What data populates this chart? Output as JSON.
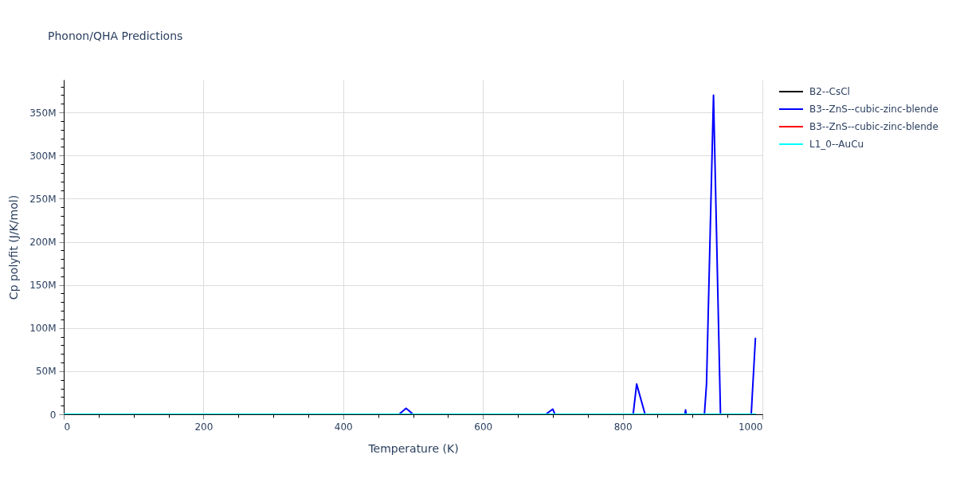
{
  "chart_data": {
    "type": "line",
    "title": "Phonon/QHA Predictions",
    "xlabel": "Temperature (K)",
    "ylabel": "Cp polyfit (J/K/mol)",
    "x": [
      0,
      990
    ],
    "series": [
      {
        "name": "B2--CsCl",
        "color": "#000000",
        "values": [
          null,
          null
        ]
      },
      {
        "name": "B3--ZnS--cubic-zinc-blende",
        "color": "#0000ff",
        "x": [
          0,
          480,
          490,
          500,
          690,
          700,
          703,
          815,
          820,
          830,
          832,
          889,
          890,
          891,
          917,
          920,
          930,
          940,
          984,
          990
        ],
        "values": [
          0,
          0,
          7000000,
          0,
          0,
          6000000,
          0,
          0,
          35000000,
          6000000,
          0,
          0,
          5000000,
          0,
          0,
          35000000,
          370000000,
          0,
          0,
          88000000
        ]
      },
      {
        "name": "B3--ZnS--cubic-zinc-blende",
        "color": "#ff0000",
        "values": [
          null,
          null
        ]
      },
      {
        "name": "L1_0--AuCu",
        "color": "#00ffff",
        "values": [
          0,
          0
        ]
      }
    ],
    "xlim": [
      0,
      1000
    ],
    "xticks": [
      0,
      {
        "value": 50,
        "label": null
      },
      200,
      {
        "value": 100,
        "label": null
      },
      {
        "value": 150,
        "label": null
      },
      {
        "value": 250,
        "label": null
      },
      {
        "value": 300,
        "label": null
      },
      {
        "value": 350,
        "label": null
      },
      400,
      {
        "value": 450,
        "label": null
      },
      {
        "value": 500,
        "label": null
      },
      {
        "value": 550,
        "label": null
      },
      600,
      {
        "value": 650,
        "label": null
      },
      {
        "value": 700,
        "label": null
      },
      {
        "value": 750,
        "label": null
      },
      800,
      {
        "value": 850,
        "label": null
      },
      {
        "value": 900,
        "label": null
      },
      {
        "value": 950,
        "label": null
      },
      1000
    ],
    "ylim": [
      0,
      388000000
    ],
    "yticks": [
      0,
      {
        "value": 10000000,
        "label": null
      },
      {
        "value": 20000000,
        "label": null
      },
      {
        "value": 30000000,
        "label": null
      },
      {
        "value": 40000000,
        "label": null
      },
      {
        "value": 50000000,
        "label": "50M"
      },
      {
        "value": 60000000,
        "label": null
      },
      {
        "value": 70000000,
        "label": null
      },
      {
        "value": 80000000,
        "label": null
      },
      {
        "value": 90000000,
        "label": null
      },
      {
        "value": 100000000,
        "label": "100M"
      },
      {
        "value": 110000000,
        "label": null
      },
      {
        "value": 120000000,
        "label": null
      },
      {
        "value": 130000000,
        "label": null
      },
      {
        "value": 140000000,
        "label": null
      },
      {
        "value": 150000000,
        "label": "150M"
      },
      {
        "value": 160000000,
        "label": null
      },
      {
        "value": 170000000,
        "label": null
      },
      {
        "value": 180000000,
        "label": null
      },
      {
        "value": 190000000,
        "label": null
      },
      {
        "value": 200000000,
        "label": "200M"
      },
      {
        "value": 210000000,
        "label": null
      },
      {
        "value": 220000000,
        "label": null
      },
      {
        "value": 230000000,
        "label": null
      },
      {
        "value": 240000000,
        "label": null
      },
      {
        "value": 250000000,
        "label": "250M"
      },
      {
        "value": 260000000,
        "label": null
      },
      {
        "value": 270000000,
        "label": null
      },
      {
        "value": 280000000,
        "label": null
      },
      {
        "value": 290000000,
        "label": null
      },
      {
        "value": 300000000,
        "label": "300M"
      },
      {
        "value": 310000000,
        "label": null
      },
      {
        "value": 320000000,
        "label": null
      },
      {
        "value": 330000000,
        "label": null
      },
      {
        "value": 340000000,
        "label": null
      },
      {
        "value": 350000000,
        "label": "350M"
      },
      {
        "value": 360000000,
        "label": null
      },
      {
        "value": 370000000,
        "label": null
      },
      {
        "value": 380000000,
        "label": null
      }
    ],
    "grid": true,
    "legend": "top right"
  }
}
